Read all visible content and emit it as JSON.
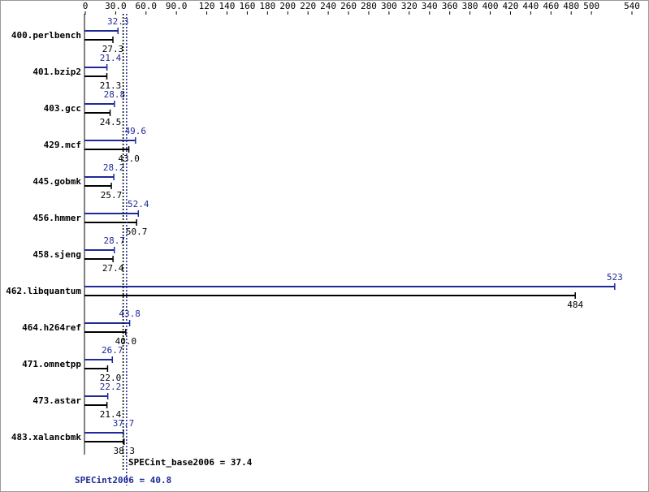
{
  "chart_data": {
    "type": "bar",
    "orientation": "horizontal",
    "categories": [
      "400.perlbench",
      "401.bzip2",
      "403.gcc",
      "429.mcf",
      "445.gobmk",
      "456.hmmer",
      "458.sjeng",
      "462.libquantum",
      "464.h264ref",
      "471.omnetpp",
      "473.astar",
      "483.xalancbmk"
    ],
    "series": [
      {
        "name": "SPECint2006",
        "color": "#1f2a99",
        "values": [
          32.3,
          21.4,
          28.8,
          49.6,
          28.2,
          52.4,
          28.7,
          523,
          43.8,
          26.7,
          22.2,
          37.7
        ],
        "value_labels": [
          "32.3",
          "21.4",
          "28.8",
          "49.6",
          "28.2",
          "52.4",
          "28.7",
          "523",
          "43.8",
          "26.7",
          "22.2",
          "37.7"
        ]
      },
      {
        "name": "SPECint_base2006",
        "color": "#000000",
        "values": [
          27.3,
          21.3,
          24.5,
          43,
          25.7,
          50.7,
          27.4,
          484,
          40,
          22,
          21.4,
          38.3
        ],
        "value_labels": [
          "27.3",
          "21.3",
          "24.5",
          "43.0",
          "25.7",
          "50.7",
          "27.4",
          "484",
          "40.0",
          "22.0",
          "21.4",
          "38.3"
        ]
      }
    ],
    "xlim": [
      0,
      540
    ],
    "xticks": [
      0,
      {
        "value": 30,
        "label": "30.0"
      },
      {
        "value": 60,
        "label": "60.0"
      },
      {
        "value": 90,
        "label": "90.0"
      },
      120,
      140,
      160,
      180,
      200,
      220,
      240,
      260,
      280,
      300,
      320,
      340,
      360,
      380,
      400,
      420,
      440,
      460,
      480,
      500,
      540
    ],
    "reference_lines": [
      {
        "value": 37.4,
        "label": "SPECint_base2006 = 37.4",
        "color": "#000000"
      },
      {
        "value": 40.8,
        "label": "SPECint2006 = 40.8",
        "color": "#1f2a99"
      }
    ]
  }
}
